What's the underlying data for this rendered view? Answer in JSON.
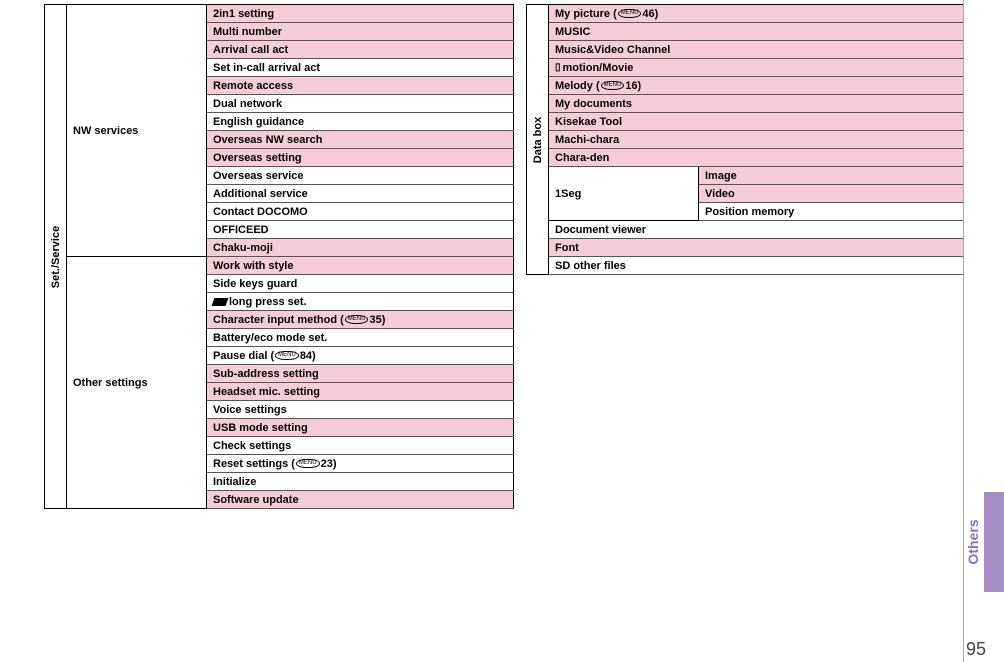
{
  "colors": {
    "pink": "#f5cdd9",
    "white": "#ffffff",
    "purple_tab": "#a58fc6",
    "purple_text": "#8a6fc0"
  },
  "side_label": "Others",
  "page_number": "95",
  "left_table": {
    "vlabel": "Set./Service",
    "groups": [
      {
        "cat": "NW services",
        "rows": [
          {
            "t": "2in1 setting",
            "c": "pink"
          },
          {
            "t": "Multi number",
            "c": "pink"
          },
          {
            "t": "Arrival call act",
            "c": "pink"
          },
          {
            "t": "Set in-call arrival act",
            "c": "white"
          },
          {
            "t": "Remote access",
            "c": "pink"
          },
          {
            "t": "Dual network",
            "c": "white"
          },
          {
            "t": "English guidance",
            "c": "white"
          },
          {
            "t": "Overseas NW search",
            "c": "pink"
          },
          {
            "t": "Overseas setting",
            "c": "pink"
          },
          {
            "t": "Overseas service",
            "c": "white"
          },
          {
            "t": "Additional service",
            "c": "white"
          },
          {
            "t": "Contact DOCOMO",
            "c": "white"
          },
          {
            "t": "OFFICEED",
            "c": "white"
          },
          {
            "t": "Chaku-moji",
            "c": "pink"
          }
        ]
      },
      {
        "cat": "Other settings",
        "rows": [
          {
            "t": "Work with style",
            "c": "pink"
          },
          {
            "t": "Side keys guard",
            "c": "white"
          },
          {
            "t": "long press set.",
            "c": "white",
            "slant": true
          },
          {
            "t_pre": "Character input method (",
            "t_num": "35",
            "t_post": ")",
            "c": "pink",
            "oval": true
          },
          {
            "t": "Battery/eco mode set.",
            "c": "white"
          },
          {
            "t_pre": "Pause dial (",
            "t_num": "84",
            "t_post": ")",
            "c": "white",
            "oval": true
          },
          {
            "t": "Sub-address setting",
            "c": "pink"
          },
          {
            "t": "Headset mic. setting",
            "c": "pink"
          },
          {
            "t": "Voice settings",
            "c": "white"
          },
          {
            "t": "USB mode setting",
            "c": "pink"
          },
          {
            "t": "Check settings",
            "c": "white"
          },
          {
            "t_pre": "Reset settings (",
            "t_num": "23",
            "t_post": ")",
            "c": "white",
            "oval": true
          },
          {
            "t": "Initialize",
            "c": "white"
          },
          {
            "t": "Software update",
            "c": "pink"
          }
        ]
      }
    ]
  },
  "right_table": {
    "vlabel": "Data box",
    "rows": [
      {
        "t_pre": "My picture (",
        "t_num": "46",
        "t_post": ")",
        "c": "pink",
        "oval": true
      },
      {
        "t": "MUSIC",
        "c": "pink"
      },
      {
        "t": "Music&Video Channel",
        "c": "pink"
      },
      {
        "t": "motion/Movie",
        "c": "pink",
        "preicon": "▯"
      },
      {
        "t_pre": "Melody (",
        "t_num": "16",
        "t_post": ")",
        "c": "pink",
        "oval": true
      },
      {
        "t": "My documents",
        "c": "pink"
      },
      {
        "t": "Kisekae Tool",
        "c": "pink"
      },
      {
        "t": "Machi-chara",
        "c": "pink"
      },
      {
        "t": "Chara-den",
        "c": "pink"
      }
    ],
    "seg": {
      "cat": "1Seg",
      "rows": [
        {
          "t": "Image",
          "c": "pink"
        },
        {
          "t": "Video",
          "c": "pink"
        },
        {
          "t": "Position memory",
          "c": "white"
        }
      ]
    },
    "tail": [
      {
        "t": "Document viewer",
        "c": "white"
      },
      {
        "t": "Font",
        "c": "pink"
      },
      {
        "t": "SD other files",
        "c": "white"
      }
    ]
  }
}
